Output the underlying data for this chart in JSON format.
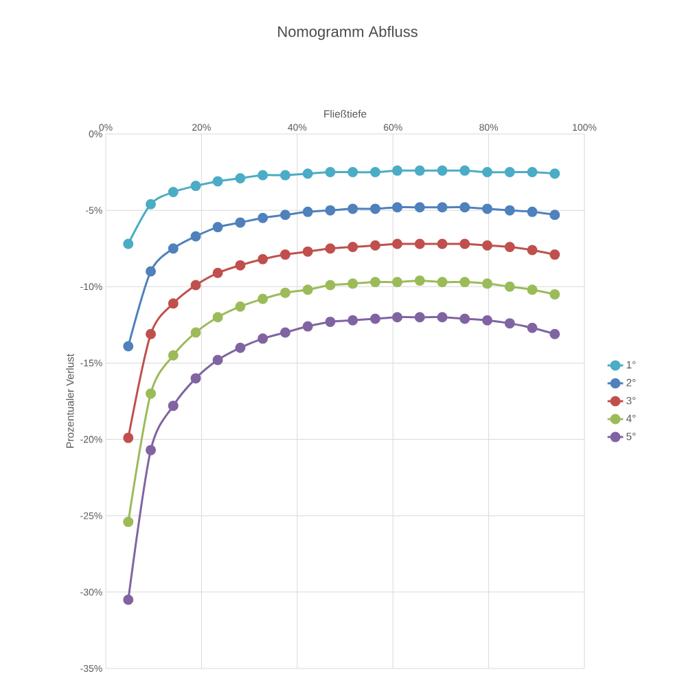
{
  "chart_data": {
    "type": "line",
    "title": "Nomogramm Abfluss",
    "xlabel": "Fließtiefe",
    "ylabel": "Prozentualer Verlust",
    "x": [
      4.7,
      9.4,
      14.1,
      18.8,
      23.4,
      28.1,
      32.8,
      37.5,
      42.2,
      46.9,
      51.6,
      56.3,
      60.9,
      65.6,
      70.3,
      75.0,
      79.7,
      84.4,
      89.1,
      93.8
    ],
    "series": [
      {
        "name": "1°",
        "color": "#4bacc6",
        "values": [
          -7.2,
          -4.6,
          -3.8,
          -3.4,
          -3.1,
          -2.9,
          -2.7,
          -2.7,
          -2.6,
          -2.5,
          -2.5,
          -2.5,
          -2.4,
          -2.4,
          -2.4,
          -2.4,
          -2.5,
          -2.5,
          -2.5,
          -2.6
        ]
      },
      {
        "name": "2°",
        "color": "#4f81bd",
        "values": [
          -13.9,
          -9.0,
          -7.5,
          -6.7,
          -6.1,
          -5.8,
          -5.5,
          -5.3,
          -5.1,
          -5.0,
          -4.9,
          -4.9,
          -4.8,
          -4.8,
          -4.8,
          -4.8,
          -4.9,
          -5.0,
          -5.1,
          -5.3
        ]
      },
      {
        "name": "3°",
        "color": "#c0504d",
        "values": [
          -19.9,
          -13.1,
          -11.1,
          -9.9,
          -9.1,
          -8.6,
          -8.2,
          -7.9,
          -7.7,
          -7.5,
          -7.4,
          -7.3,
          -7.2,
          -7.2,
          -7.2,
          -7.2,
          -7.3,
          -7.4,
          -7.6,
          -7.9
        ]
      },
      {
        "name": "4°",
        "color": "#9bbb59",
        "values": [
          -25.4,
          -17.0,
          -14.5,
          -13.0,
          -12.0,
          -11.3,
          -10.8,
          -10.4,
          -10.2,
          -9.9,
          -9.8,
          -9.7,
          -9.7,
          -9.6,
          -9.7,
          -9.7,
          -9.8,
          -10.0,
          -10.2,
          -10.5
        ]
      },
      {
        "name": "5°",
        "color": "#8064a2",
        "values": [
          -30.5,
          -20.7,
          -17.8,
          -16.0,
          -14.8,
          -14.0,
          -13.4,
          -13.0,
          -12.6,
          -12.3,
          -12.2,
          -12.1,
          -12.0,
          -12.0,
          -12.0,
          -12.1,
          -12.2,
          -12.4,
          -12.7,
          -13.1
        ]
      }
    ],
    "xlim": [
      0,
      100
    ],
    "ylim": [
      -35,
      0
    ],
    "xticks": [
      {
        "value": 0,
        "label": "0%"
      },
      {
        "value": 20,
        "label": "20%"
      },
      {
        "value": 40,
        "label": "40%"
      },
      {
        "value": 60,
        "label": "60%"
      },
      {
        "value": 80,
        "label": "80%"
      },
      {
        "value": 100,
        "label": "100%"
      }
    ],
    "yticks": [
      {
        "value": 0,
        "label": "0%"
      },
      {
        "value": -5,
        "label": "-5%"
      },
      {
        "value": -10,
        "label": "-10%"
      },
      {
        "value": -15,
        "label": "-15%"
      },
      {
        "value": -20,
        "label": "-20%"
      },
      {
        "value": -25,
        "label": "-25%"
      },
      {
        "value": -30,
        "label": "-30%"
      },
      {
        "value": -35,
        "label": "-35%"
      }
    ],
    "grid": true,
    "legend": "right",
    "marker": "circle",
    "line_style": "solid"
  }
}
